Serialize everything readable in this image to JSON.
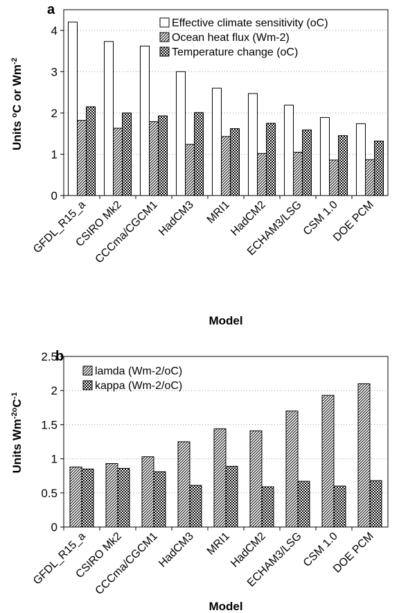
{
  "chart_data": [
    {
      "panel": "a",
      "type": "bar",
      "categories": [
        "GFDL_R15_a",
        "CSIRO Mk2",
        "CCCma/CGCM1",
        "HadCM3",
        "MRI1",
        "HadCM2",
        "ECHAM3/LSG",
        "CSM 1.0",
        "DOE PCM"
      ],
      "series": [
        {
          "name": "Effective climate sensitivity (oC)",
          "values": [
            4.2,
            3.73,
            3.62,
            3.0,
            2.6,
            2.47,
            2.19,
            1.89,
            1.74
          ],
          "pattern": "blank"
        },
        {
          "name": "Ocean heat flux (Wm-2)",
          "values": [
            1.82,
            1.63,
            1.79,
            1.24,
            1.43,
            1.02,
            1.05,
            0.86,
            0.87
          ],
          "pattern": "hatch"
        },
        {
          "name": "Temperature change (oC)",
          "values": [
            2.15,
            2.0,
            1.93,
            2.01,
            1.62,
            1.75,
            1.59,
            1.45,
            1.32
          ],
          "pattern": "check"
        }
      ],
      "ylabel": "Units °C or Wm⁻²",
      "xlabel": "Model",
      "ylim": [
        0,
        4.5
      ],
      "yticks": [
        "0",
        "1",
        "2",
        "3",
        "4"
      ],
      "grid": "horizontal dotted",
      "legend": "top-right"
    },
    {
      "panel": "b",
      "type": "bar",
      "categories": [
        "GFDL_R15_a",
        "CSIRO Mk2",
        "CCCma/CGCM1",
        "HadCM3",
        "MRI1",
        "HadCM2",
        "ECHAM3/LSG",
        "CSM 1.0",
        "DOE PCM"
      ],
      "series": [
        {
          "name": "lamda (Wm-2/oC)",
          "values": [
            0.88,
            0.93,
            1.03,
            1.25,
            1.44,
            1.41,
            1.7,
            1.93,
            2.1
          ],
          "pattern": "hatch"
        },
        {
          "name": "kappa (Wm-2/oC)",
          "values": [
            0.85,
            0.86,
            0.81,
            0.61,
            0.89,
            0.59,
            0.67,
            0.6,
            0.68
          ],
          "pattern": "check"
        }
      ],
      "ylabel": "Units Wm⁻²°C⁻¹",
      "xlabel": "Model",
      "ylim": [
        0,
        2.5
      ],
      "yticks": [
        "0",
        "0.5",
        "1",
        "1.5",
        "2",
        "2.5"
      ],
      "grid": "horizontal dotted",
      "legend": "top-left"
    }
  ]
}
